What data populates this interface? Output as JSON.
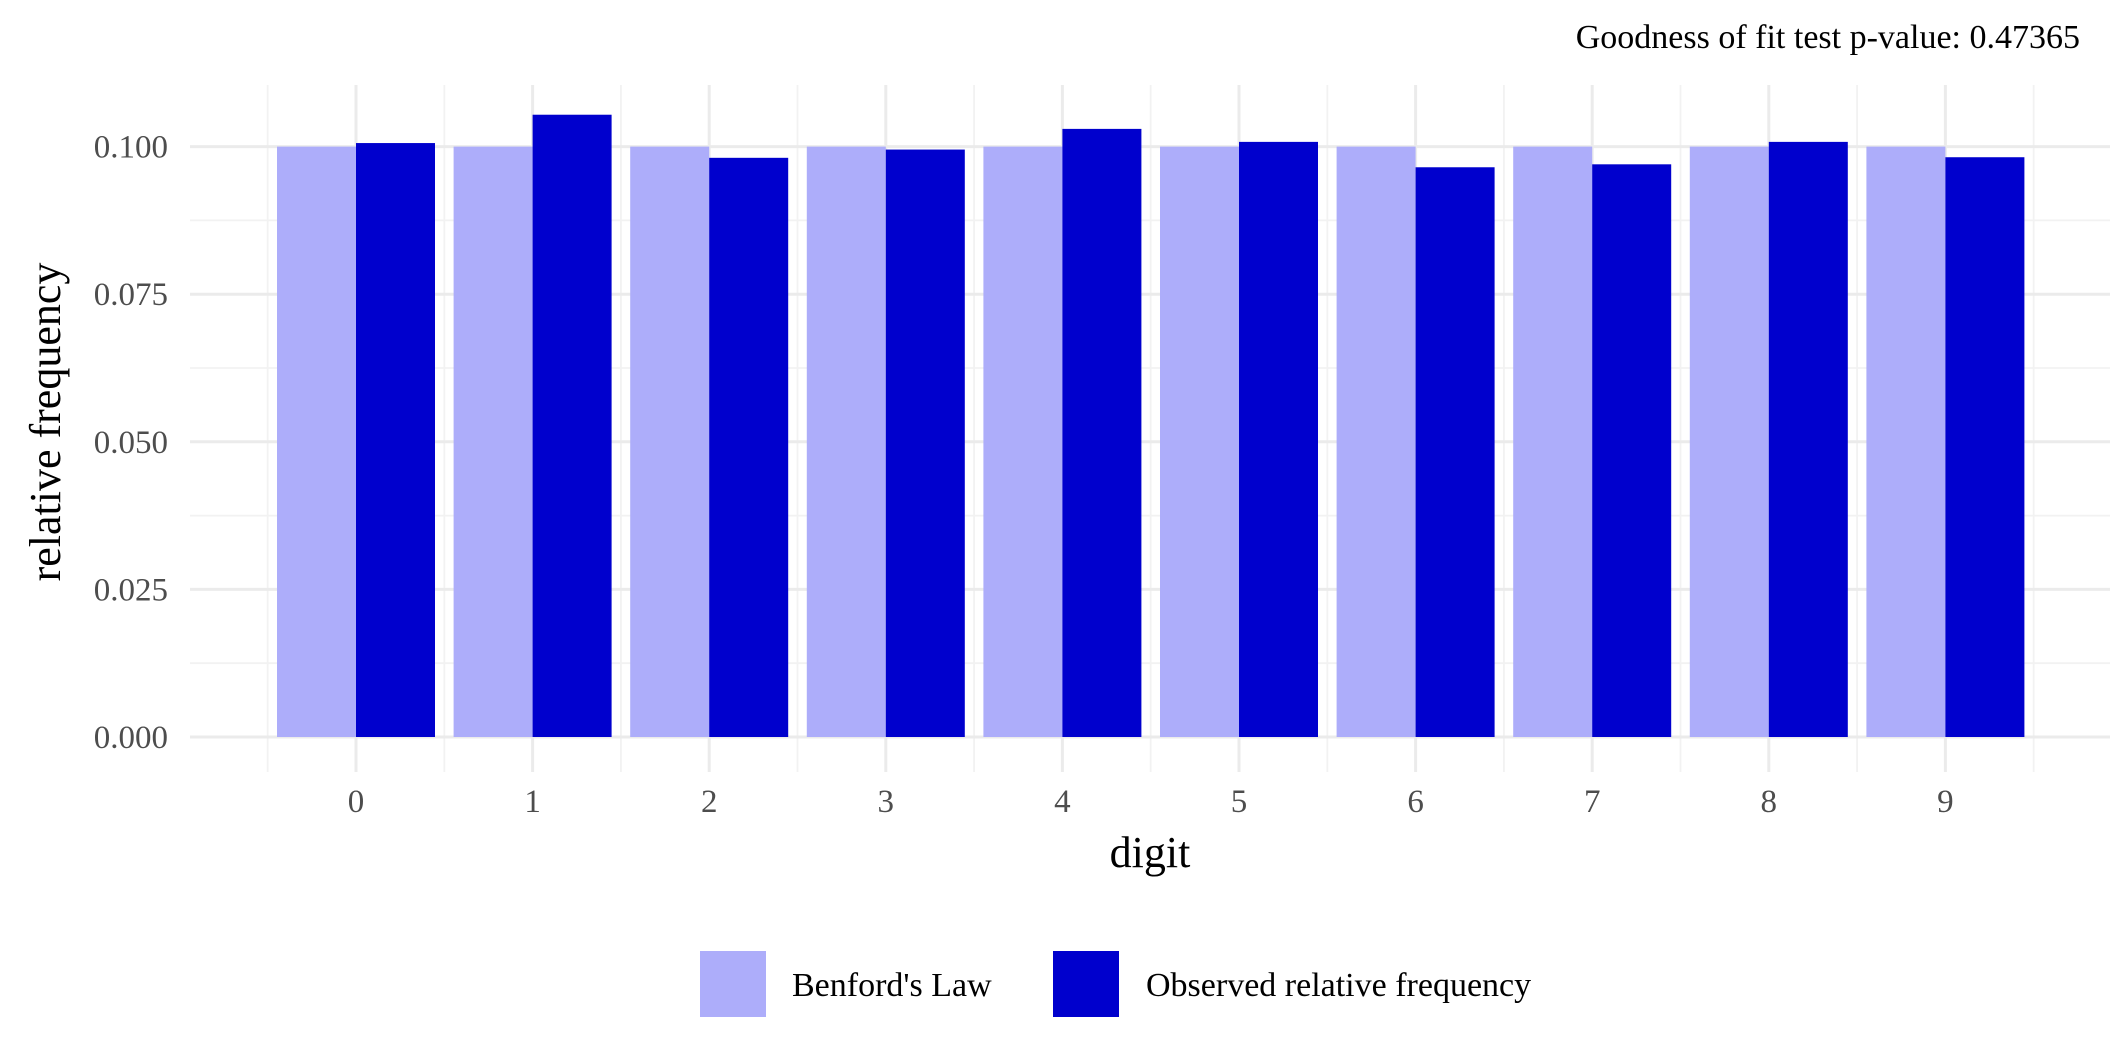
{
  "chart_data": {
    "type": "bar",
    "subtitle": "Goodness of fit test p-value: 0.47365",
    "xlabel": "digit",
    "ylabel": "relative frequency",
    "categories": [
      "0",
      "1",
      "2",
      "3",
      "4",
      "5",
      "6",
      "7",
      "8",
      "9"
    ],
    "series": [
      {
        "name": "Benford's Law",
        "color": "#adadfa",
        "values": [
          0.1,
          0.1,
          0.1,
          0.1,
          0.1,
          0.1,
          0.1,
          0.1,
          0.1,
          0.1
        ]
      },
      {
        "name": "Observed relative frequency",
        "color": "#0000cd",
        "values": [
          0.1006,
          0.1054,
          0.0981,
          0.0995,
          0.103,
          0.1008,
          0.0965,
          0.097,
          0.1008,
          0.0982
        ]
      }
    ],
    "ylim": [
      0,
      0.11
    ],
    "yticks": [
      0,
      0.025,
      0.05,
      0.075,
      0.1
    ],
    "ytick_labels": [
      "0.000",
      "0.025",
      "0.050",
      "0.075",
      "0.100"
    ],
    "grid": true,
    "legend_position": "bottom"
  }
}
